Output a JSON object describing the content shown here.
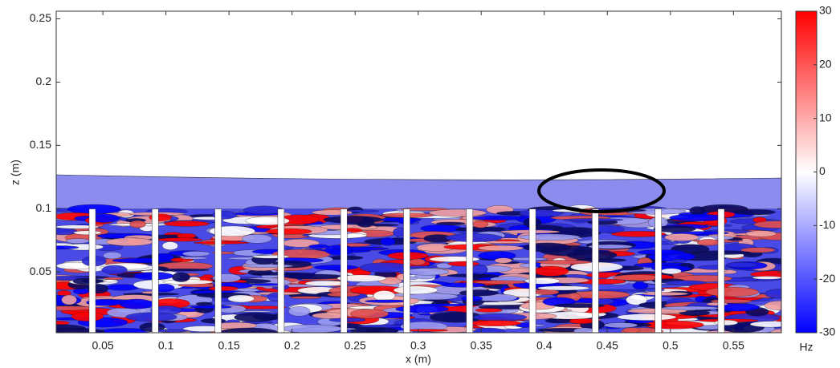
{
  "chart_data": {
    "type": "contour",
    "xlabel": "x (m)",
    "ylabel": "z (m)",
    "xlim": [
      0.013,
      0.588
    ],
    "xticks": [
      0.05,
      0.1,
      0.15,
      0.2,
      0.25,
      0.3,
      0.35,
      0.4,
      0.45,
      0.5,
      0.55
    ],
    "ylim": [
      0.002,
      0.256
    ],
    "yticks": [
      0.05,
      0.1,
      0.15,
      0.2,
      0.25
    ],
    "colorbar": {
      "label": "Hz",
      "lim": [
        -30,
        30
      ],
      "ticks": [
        -30,
        -20,
        -10,
        0,
        10,
        20,
        30
      ],
      "colors": [
        "#0000ff",
        "#ffffff",
        "#ff0000"
      ]
    }
  }
}
